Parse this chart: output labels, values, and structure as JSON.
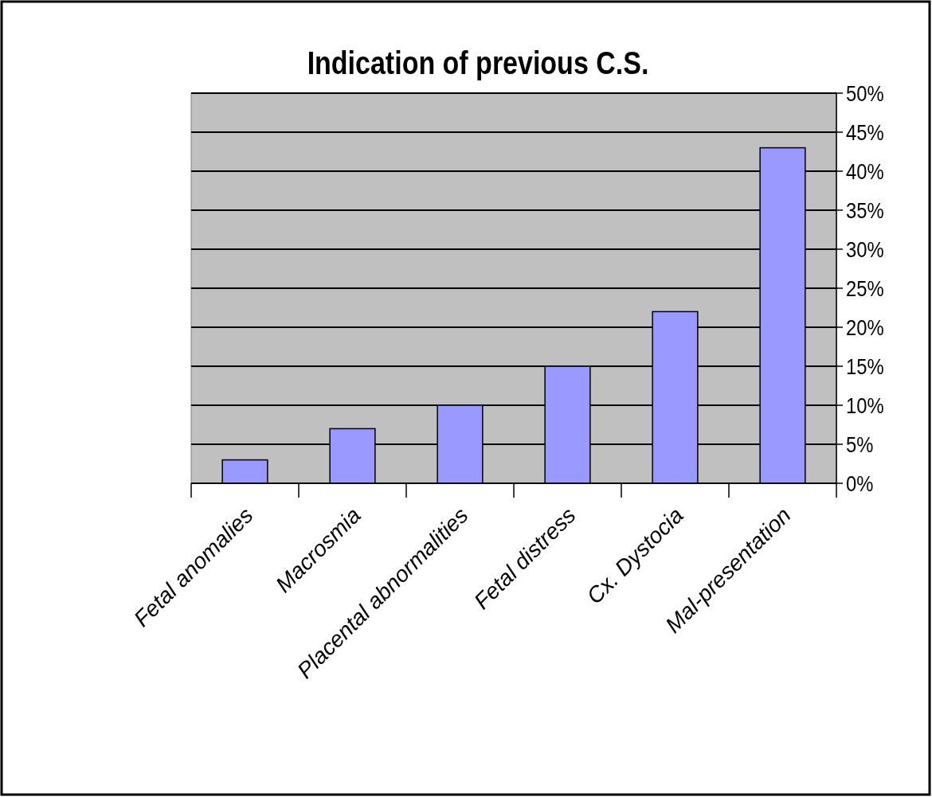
{
  "chart_data": {
    "type": "bar",
    "title": "Indication of previous C.S.",
    "categories": [
      "Fetal anomalies",
      "Macrosmia",
      "Placental abnormalities",
      "Fetal distress",
      "Cx. Dystocia",
      "Mal-presentation"
    ],
    "values": [
      3,
      7,
      10,
      15,
      22,
      43
    ],
    "color": "#9999ff",
    "ylim": [
      0,
      50
    ],
    "yticks": [
      {
        "value": 0,
        "label": "0%"
      },
      {
        "value": 5,
        "label": "5%"
      },
      {
        "value": 10,
        "label": "10%"
      },
      {
        "value": 15,
        "label": "15%"
      },
      {
        "value": 20,
        "label": "20%"
      },
      {
        "value": 25,
        "label": "25%"
      },
      {
        "value": 30,
        "label": "30%"
      },
      {
        "value": 35,
        "label": "35%"
      },
      {
        "value": 40,
        "label": "40%"
      },
      {
        "value": 45,
        "label": "45%"
      },
      {
        "value": 50,
        "label": "50%"
      }
    ],
    "grid": "y"
  }
}
